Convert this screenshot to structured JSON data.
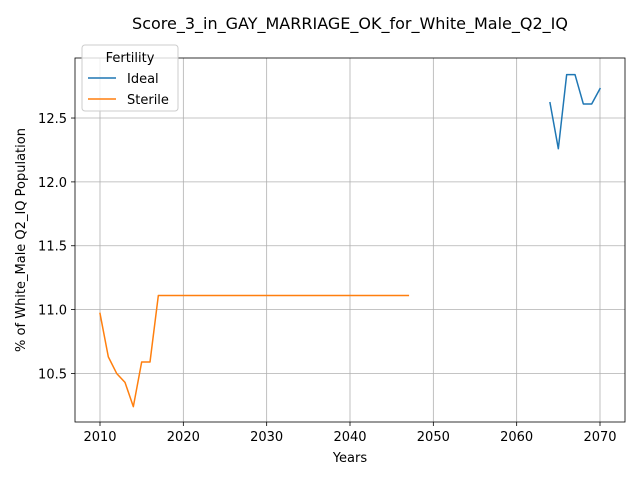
{
  "chart_data": {
    "type": "line",
    "title": "Score_3_in_GAY_MARRIAGE_OK_for_White_Male_Q2_IQ",
    "xlabel": "Years",
    "ylabel": "% of White_Male Q2_IQ Population",
    "xlim": [
      2007,
      2073
    ],
    "ylim": [
      10.12,
      12.97
    ],
    "xticks": [
      2010,
      2020,
      2030,
      2040,
      2050,
      2060,
      2070
    ],
    "xtick_labels": [
      "2010",
      "2020",
      "2030",
      "2040",
      "2050",
      "2060",
      "2070"
    ],
    "yticks": [
      10.5,
      11.0,
      11.5,
      12.0,
      12.5
    ],
    "ytick_labels": [
      "10.5",
      "11.0",
      "11.5",
      "12.0",
      "12.5"
    ],
    "grid": true,
    "legend": {
      "title": "Fertility",
      "position": "top-left"
    },
    "series": [
      {
        "name": "Ideal",
        "color": "#1f77b4",
        "x": [
          2064,
          2065,
          2066,
          2067,
          2068,
          2069,
          2070
        ],
        "y": [
          12.62,
          12.26,
          12.84,
          12.84,
          12.61,
          12.61,
          12.73
        ]
      },
      {
        "name": "Sterile",
        "color": "#ff7f0e",
        "x": [
          2010,
          2011,
          2012,
          2013,
          2014,
          2015,
          2016,
          2017,
          2018,
          2019,
          2020,
          2021,
          2022,
          2023,
          2024,
          2025,
          2026,
          2027,
          2028,
          2029,
          2030,
          2031,
          2032,
          2033,
          2034,
          2035,
          2036,
          2037,
          2038,
          2039,
          2040,
          2041,
          2042,
          2043,
          2044,
          2045,
          2046,
          2047
        ],
        "y": [
          10.97,
          10.63,
          10.5,
          10.43,
          10.24,
          10.59,
          10.59,
          11.11,
          11.11,
          11.11,
          11.11,
          11.11,
          11.11,
          11.11,
          11.11,
          11.11,
          11.11,
          11.11,
          11.11,
          11.11,
          11.11,
          11.11,
          11.11,
          11.11,
          11.11,
          11.11,
          11.11,
          11.11,
          11.11,
          11.11,
          11.11,
          11.11,
          11.11,
          11.11,
          11.11,
          11.11,
          11.11,
          11.11
        ]
      }
    ]
  }
}
